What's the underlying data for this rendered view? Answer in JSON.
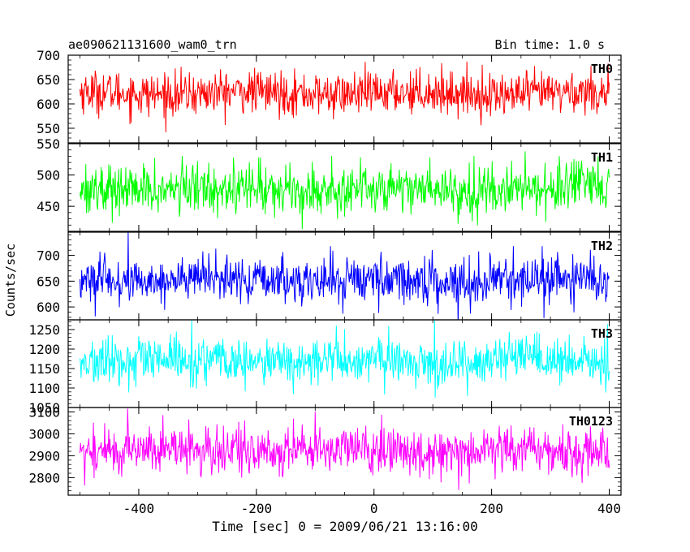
{
  "header": {
    "title": "ae090621131600_wam0_trn",
    "bin_time": "Bin time: 1.0 s"
  },
  "chart_data": {
    "type": "line",
    "xlabel": "Time [sec] 0 = 2009/06/21 13:16:00",
    "ylabel": "Counts/sec",
    "xlim": [
      -520,
      420
    ],
    "x_ticks": [
      -400,
      -200,
      0,
      200,
      400
    ],
    "x_start": -500,
    "x_end": 400,
    "bin_time_s": 1.0,
    "panels": [
      {
        "name": "TH0",
        "color": "#ff0000",
        "ylim": [
          520,
          700
        ],
        "y_ticks": [
          550,
          600,
          650,
          700
        ],
        "mean": 622,
        "spread": 22
      },
      {
        "name": "TH1",
        "color": "#00ff00",
        "ylim": [
          410,
          550
        ],
        "y_ticks": [
          450,
          500,
          550
        ],
        "mean": 478,
        "spread": 20
      },
      {
        "name": "TH2",
        "color": "#0000ff",
        "ylim": [
          575,
          745
        ],
        "y_ticks": [
          600,
          650,
          700
        ],
        "mean": 652,
        "spread": 22
      },
      {
        "name": "TH3",
        "color": "#00ffff",
        "ylim": [
          1050,
          1275
        ],
        "y_ticks": [
          1050,
          1100,
          1150,
          1200,
          1250
        ],
        "mean": 1168,
        "spread": 30
      },
      {
        "name": "TH0123",
        "color": "#ff00ff",
        "ylim": [
          2720,
          3120
        ],
        "y_ticks": [
          2800,
          2900,
          3000,
          3100
        ],
        "mean": 2925,
        "spread": 55
      }
    ]
  }
}
